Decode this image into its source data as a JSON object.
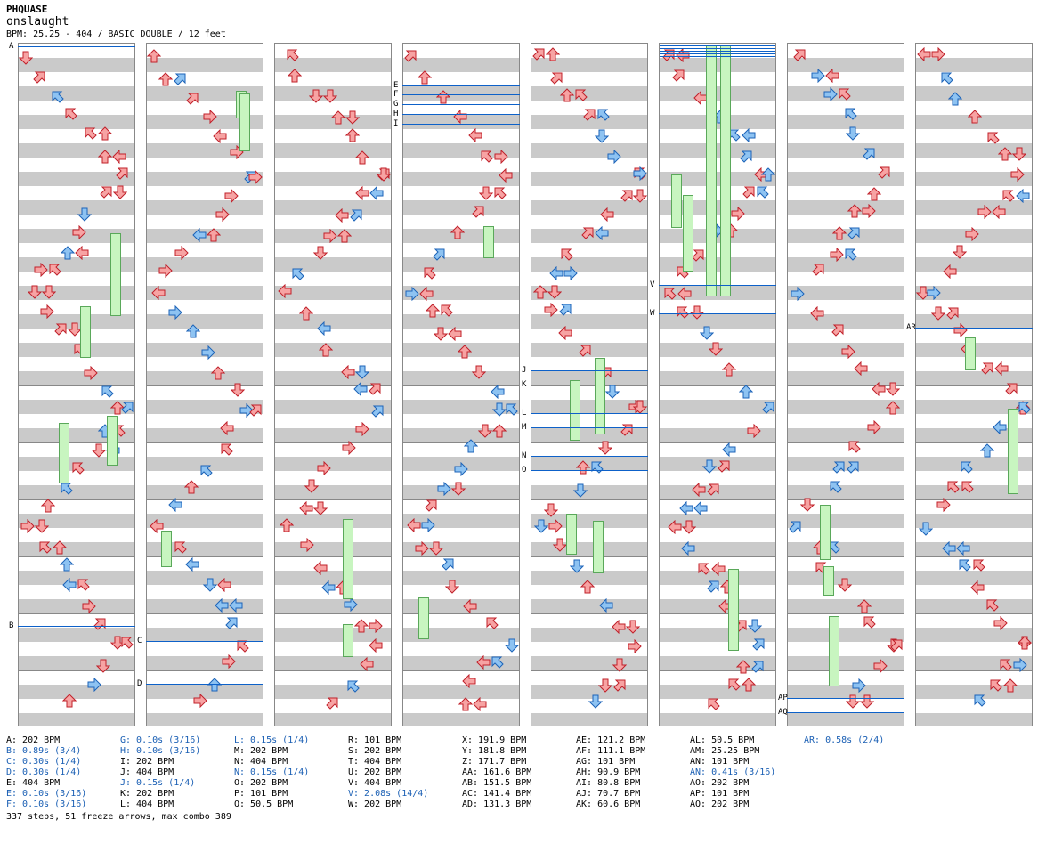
{
  "title": "PHQUASE",
  "song": "onslaught",
  "subtitle": "BPM: 25.25 - 404 / BASIC DOUBLE / 12 feet",
  "section_labels": [
    "A",
    "B",
    "C",
    "D",
    "E",
    "F",
    "G",
    "H",
    "I",
    "J",
    "K",
    "L",
    "M",
    "N",
    "O",
    "V",
    "W",
    "AP",
    "AQ",
    "AR"
  ],
  "legend": [
    {
      "text": "A: 202 BPM",
      "stop": false
    },
    {
      "text": "B: 0.89s (3/4)",
      "stop": true
    },
    {
      "text": "C: 0.30s (1/4)",
      "stop": true
    },
    {
      "text": "D: 0.30s (1/4)",
      "stop": true
    },
    {
      "text": "E: 404 BPM",
      "stop": false
    },
    {
      "text": "E: 0.10s (3/16)",
      "stop": true
    },
    {
      "text": "F: 0.10s (3/16)",
      "stop": true
    },
    {
      "text": "G: 0.10s (3/16)",
      "stop": true
    },
    {
      "text": "H: 0.10s (3/16)",
      "stop": true
    },
    {
      "text": "I: 202 BPM",
      "stop": false
    },
    {
      "text": "J: 404 BPM",
      "stop": false
    },
    {
      "text": "J: 0.15s (1/4)",
      "stop": true
    },
    {
      "text": "K: 202 BPM",
      "stop": false
    },
    {
      "text": "L: 404 BPM",
      "stop": false
    },
    {
      "text": "L: 0.15s (1/4)",
      "stop": true
    },
    {
      "text": "M: 202 BPM",
      "stop": false
    },
    {
      "text": "N: 404 BPM",
      "stop": false
    },
    {
      "text": "N: 0.15s (1/4)",
      "stop": true
    },
    {
      "text": "O: 202 BPM",
      "stop": false
    },
    {
      "text": "P: 101 BPM",
      "stop": false
    },
    {
      "text": "Q: 50.5 BPM",
      "stop": false
    },
    {
      "text": "R: 101 BPM",
      "stop": false
    },
    {
      "text": "S: 202 BPM",
      "stop": false
    },
    {
      "text": "T: 404 BPM",
      "stop": false
    },
    {
      "text": "U: 202 BPM",
      "stop": false
    },
    {
      "text": "V: 404 BPM",
      "stop": false
    },
    {
      "text": "V: 2.08s (14/4)",
      "stop": true
    },
    {
      "text": "W: 202 BPM",
      "stop": false
    },
    {
      "text": "X: 191.9 BPM",
      "stop": false
    },
    {
      "text": "Y: 181.8 BPM",
      "stop": false
    },
    {
      "text": "Z: 171.7 BPM",
      "stop": false
    },
    {
      "text": "AA: 161.6 BPM",
      "stop": false
    },
    {
      "text": "AB: 151.5 BPM",
      "stop": false
    },
    {
      "text": "AC: 141.4 BPM",
      "stop": false
    },
    {
      "text": "AD: 131.3 BPM",
      "stop": false
    },
    {
      "text": "AE: 121.2 BPM",
      "stop": false
    },
    {
      "text": "AF: 111.1 BPM",
      "stop": false
    },
    {
      "text": "AG: 101 BPM",
      "stop": false
    },
    {
      "text": "AH: 90.9 BPM",
      "stop": false
    },
    {
      "text": "AI: 80.8 BPM",
      "stop": false
    },
    {
      "text": "AJ: 70.7 BPM",
      "stop": false
    },
    {
      "text": "AK: 60.6 BPM",
      "stop": false
    },
    {
      "text": "AL: 50.5 BPM",
      "stop": false
    },
    {
      "text": "AM: 25.25 BPM",
      "stop": false
    },
    {
      "text": "AN: 101 BPM",
      "stop": false
    },
    {
      "text": "AN: 0.41s (3/16)",
      "stop": true
    },
    {
      "text": "AO: 202 BPM",
      "stop": false
    },
    {
      "text": "AP: 101 BPM",
      "stop": false
    },
    {
      "text": "AQ: 202 BPM",
      "stop": false
    },
    {
      "text": "AR: 0.58s (2/4)",
      "stop": true
    }
  ],
  "footer": "337 steps, 51 freeze arrows, max combo 389",
  "colors": {
    "arrow_red": "#f7a3a3",
    "arrow_red_stroke": "#c0202a",
    "arrow_blue": "#8ec3f2",
    "arrow_blue_stroke": "#1c63b8",
    "freeze_green": "#c8f5c0",
    "bpm_line": "#0d61c9",
    "stop_text": "#1a5fb4",
    "band_gray": "#cacaca"
  }
}
